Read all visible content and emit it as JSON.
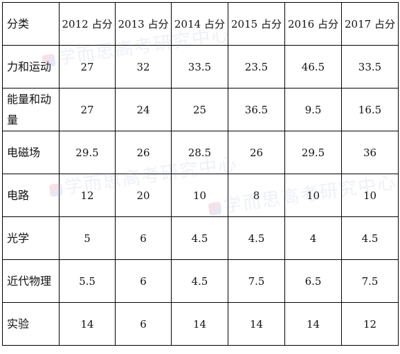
{
  "table": {
    "headers": [
      "分类",
      "2012 占分",
      "2013 占分",
      "2014 占分",
      "2015 占分",
      "2016 占分",
      "2017 占分"
    ],
    "rows": [
      {
        "category": "力和运动",
        "values": [
          "27",
          "32",
          "33.5",
          "23.5",
          "46.5",
          "33.5"
        ]
      },
      {
        "category": "能量和动量",
        "values": [
          "27",
          "24",
          "25",
          "36.5",
          "9.5",
          "16.5"
        ]
      },
      {
        "category": "电磁场",
        "values": [
          "29.5",
          "26",
          "28.5",
          "26",
          "29.5",
          "36"
        ]
      },
      {
        "category": "电路",
        "values": [
          "12",
          "20",
          "10",
          "8",
          "10",
          "10"
        ]
      },
      {
        "category": "光学",
        "values": [
          "5",
          "6",
          "4.5",
          "4.5",
          "4",
          "4.5"
        ]
      },
      {
        "category": "近代物理",
        "values": [
          "5.5",
          "6",
          "4.5",
          "7.5",
          "6.5",
          "7.5"
        ]
      },
      {
        "category": "实验",
        "values": [
          "14",
          "6",
          "14",
          "14",
          "14",
          "12"
        ]
      }
    ]
  },
  "watermark": {
    "text": "学而思高考研究中心"
  }
}
